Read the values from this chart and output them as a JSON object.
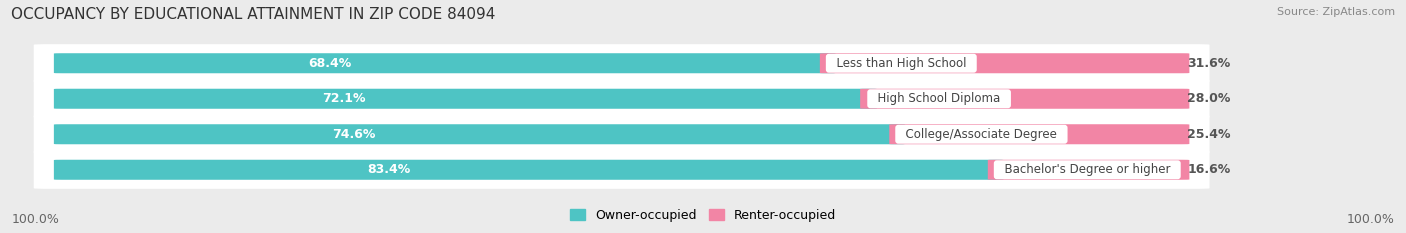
{
  "title": "OCCUPANCY BY EDUCATIONAL ATTAINMENT IN ZIP CODE 84094",
  "source": "Source: ZipAtlas.com",
  "categories": [
    "Less than High School",
    "High School Diploma",
    "College/Associate Degree",
    "Bachelor's Degree or higher"
  ],
  "owner_pct": [
    68.4,
    72.1,
    74.6,
    83.4
  ],
  "renter_pct": [
    31.6,
    28.0,
    25.4,
    16.6
  ],
  "owner_color": "#4ec4c4",
  "renter_color": "#f285a5",
  "bg_color": "#ebebeb",
  "row_bg_color": "#ffffff",
  "label_color_owner": "#ffffff",
  "label_color_renter": "#555555",
  "axis_label_left": "100.0%",
  "axis_label_right": "100.0%",
  "legend_owner": "Owner-occupied",
  "legend_renter": "Renter-occupied",
  "title_fontsize": 11,
  "source_fontsize": 8,
  "bar_label_fontsize": 9,
  "cat_label_fontsize": 8.5,
  "legend_fontsize": 9
}
